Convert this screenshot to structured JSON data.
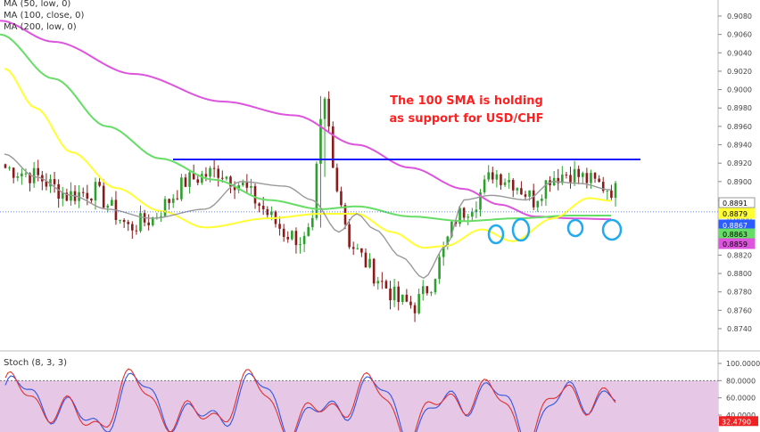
{
  "legend": {
    "ma50": "MA (50, low, 0)",
    "ma100": "MA (100, close, 0)",
    "ma200": "MA (200, low, 0)"
  },
  "annotation": {
    "line1": "The 100 SMA is holding",
    "line2": "as support for USD/CHF"
  },
  "stoch_label": "Stoch (8, 3, 3)",
  "colors": {
    "up": "#2ca02c",
    "down": "#8b1a1a",
    "ma50": "#ffff33",
    "ma100": "#66dd66",
    "ma200": "#dd55dd",
    "fast_ma": "#999999",
    "resistance": "#1a1aff",
    "circles": "#22aaee",
    "stoch_bg": "#e6c8e6",
    "stoch_k": "#3355dd",
    "stoch_d": "#dd3333"
  },
  "price_ticks": [
    "0.9080",
    "0.9060",
    "0.9040",
    "0.9020",
    "0.9000",
    "0.8980",
    "0.8960",
    "0.8940",
    "0.8920",
    "0.8900",
    "0.8880",
    "0.8860",
    "0.8840",
    "0.8820",
    "0.8800",
    "0.8780",
    "0.8760",
    "0.8740"
  ],
  "stoch_ticks": [
    "100.0000",
    "80.0000",
    "60.0000",
    "40.0000"
  ],
  "price_tags": [
    {
      "value": "0.8891",
      "price": 0.8891,
      "bg": "#ffffff",
      "fg": "#000000"
    },
    {
      "value": "0.8879",
      "price": 0.8879,
      "bg": "#ffff33",
      "fg": "#000000"
    },
    {
      "value": "0.8867",
      "price": 0.8867,
      "bg": "#2b5cff",
      "fg": "#ffffff"
    },
    {
      "value": "0.8863",
      "price": 0.8863,
      "bg": "#66dd66",
      "fg": "#000000"
    },
    {
      "value": "0.8859",
      "price": 0.8859,
      "bg": "#dd55dd",
      "fg": "#000000"
    }
  ],
  "stoch_tag": {
    "value": "32.4790",
    "level": 32.479
  },
  "chart_data": {
    "type": "candlestick",
    "y_axis": {
      "min": 0.874,
      "max": 0.909
    },
    "resistance_level": 0.8924,
    "current_price": 0.8867,
    "support_circles": 4,
    "stoch_range": [
      0,
      100
    ],
    "stoch_last": 32.479
  }
}
